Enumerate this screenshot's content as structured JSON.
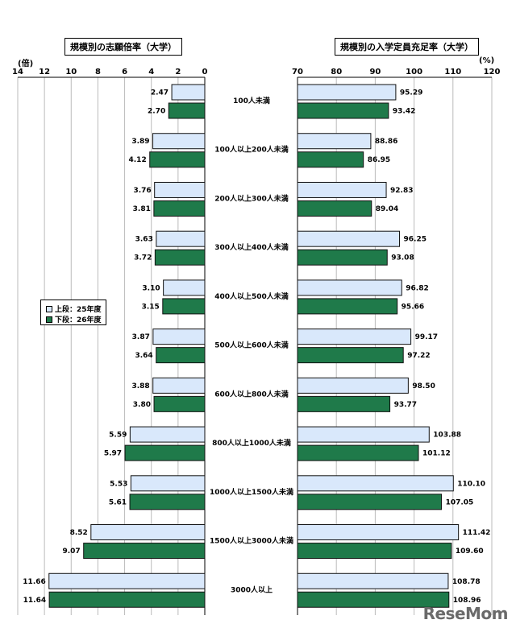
{
  "colors": {
    "light_fill": "#d9e8fb",
    "dark_fill": "#1f7a4a",
    "border": "#111111"
  },
  "chart_data": [
    {
      "type": "bar",
      "orientation": "horizontal",
      "direction": "right-to-left",
      "title": "規模別の志願倍率（大学）",
      "unit": "(倍)",
      "xlim": [
        0,
        14
      ],
      "ticks": [
        "14",
        "12",
        "10",
        "8",
        "6",
        "4",
        "2",
        "0"
      ],
      "categories": [
        "100人未満",
        "100人以上200人未満",
        "200人以上300人未満",
        "300人以上400人未満",
        "400人以上500人未満",
        "500人以上600人未満",
        "600人以上800人未満",
        "800人以上1000人未満",
        "1000人以上1500人未満",
        "1500人以上3000人未満",
        "3000人以上"
      ],
      "series": [
        {
          "name": "上段：25年度",
          "values": [
            2.47,
            3.89,
            3.76,
            3.63,
            3.1,
            3.87,
            3.88,
            5.59,
            5.53,
            8.52,
            11.66
          ],
          "labels": [
            "2.47",
            "3.89",
            "3.76",
            "3.63",
            "3.10",
            "3.87",
            "3.88",
            "5.59",
            "5.53",
            "8.52",
            "11.66"
          ]
        },
        {
          "name": "下段：26年度",
          "values": [
            2.7,
            4.12,
            3.81,
            3.72,
            3.15,
            3.64,
            3.8,
            5.97,
            5.61,
            9.07,
            11.64
          ],
          "labels": [
            "2.70",
            "4.12",
            "3.81",
            "3.72",
            "3.15",
            "3.64",
            "3.80",
            "5.97",
            "5.61",
            "9.07",
            "11.64"
          ]
        }
      ],
      "grid": true,
      "legend": "left-middle"
    },
    {
      "type": "bar",
      "orientation": "horizontal",
      "direction": "left-to-right",
      "title": "規模別の入学定員充足率（大学）",
      "unit": "(%)",
      "xlim": [
        70,
        120
      ],
      "ticks": [
        "70",
        "80",
        "90",
        "100",
        "110",
        "120"
      ],
      "categories": [
        "100人未満",
        "100人以上200人未満",
        "200人以上300人未満",
        "300人以上400人未満",
        "400人以上500人未満",
        "500人以上600人未満",
        "600人以上800人未満",
        "800人以上1000人未満",
        "1000人以上1500人未満",
        "1500人以上3000人未満",
        "3000人以上"
      ],
      "series": [
        {
          "name": "上段：25年度",
          "values": [
            95.29,
            88.86,
            92.83,
            96.25,
            96.82,
            99.17,
            98.5,
            103.88,
            110.1,
            111.42,
            108.78
          ],
          "labels": [
            "95.29",
            "88.86",
            "92.83",
            "96.25",
            "96.82",
            "99.17",
            "98.50",
            "103.88",
            "110.10",
            "111.42",
            "108.78"
          ]
        },
        {
          "name": "下段：26年度",
          "values": [
            93.42,
            86.95,
            89.04,
            93.08,
            95.66,
            97.22,
            93.77,
            101.12,
            107.05,
            109.6,
            108.96
          ],
          "labels": [
            "93.42",
            "86.95",
            "89.04",
            "93.08",
            "95.66",
            "97.22",
            "93.77",
            "101.12",
            "107.05",
            "109.60",
            "108.96"
          ]
        }
      ],
      "grid": true,
      "legend": "none"
    }
  ],
  "legend": {
    "items": [
      "上段：25年度",
      "下段：26年度"
    ]
  },
  "watermark": "ReseMom"
}
